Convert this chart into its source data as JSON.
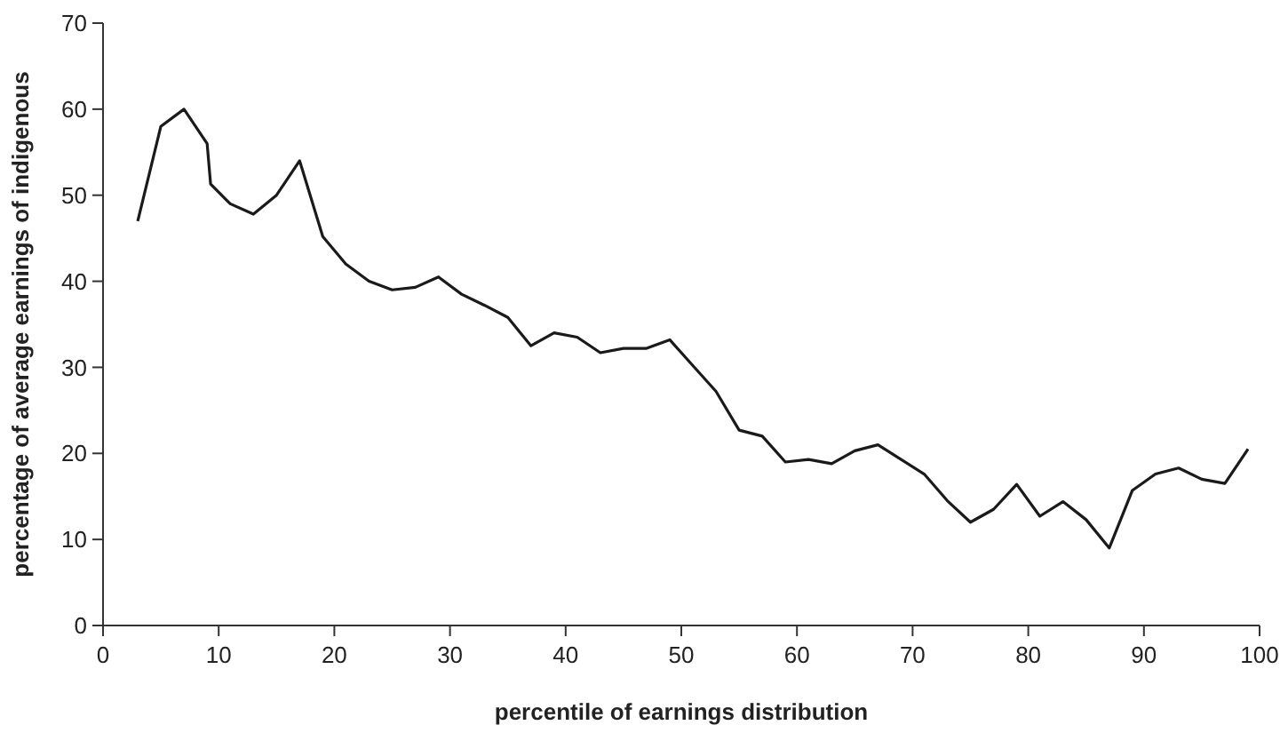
{
  "chart_data": {
    "type": "line",
    "xlabel": "percentile of earnings distribution",
    "ylabel": "percentage of average earnings of indigenous",
    "xlim": [
      0,
      100
    ],
    "xticks": [
      0,
      10,
      20,
      30,
      40,
      50,
      60,
      70,
      80,
      90,
      100
    ],
    "ylim": [
      0,
      70
    ],
    "yticks": [
      0,
      10,
      20,
      30,
      40,
      50,
      60,
      70
    ],
    "grid": false,
    "series": [
      {
        "color": "#1a1a1a",
        "x": [
          3,
          5,
          7,
          9,
          9.3,
          11,
          13,
          15,
          17,
          19,
          21,
          23,
          25,
          27,
          29,
          31,
          33,
          35,
          37,
          39,
          41,
          43,
          45,
          47,
          49,
          51,
          53,
          55,
          57,
          59,
          61,
          63,
          65,
          67,
          69,
          71,
          73,
          75,
          77,
          79,
          81,
          83,
          85,
          87,
          89,
          91,
          93,
          95,
          97,
          99
        ],
        "values": [
          47,
          58,
          60,
          56,
          51.3,
          49,
          47.8,
          50,
          54,
          45.2,
          42,
          40,
          39,
          39.3,
          40.5,
          38.5,
          37.2,
          35.8,
          32.5,
          34,
          33.5,
          31.7,
          32.2,
          32.2,
          33.2,
          30.2,
          27.2,
          22.7,
          22,
          19,
          19.3,
          18.8,
          20.3,
          21,
          19.3,
          17.6,
          14.5,
          12,
          13.5,
          16.4,
          12.7,
          14.4,
          12.3,
          9,
          15.7,
          17.6,
          18.3,
          17,
          16.5,
          20.5
        ]
      }
    ]
  }
}
